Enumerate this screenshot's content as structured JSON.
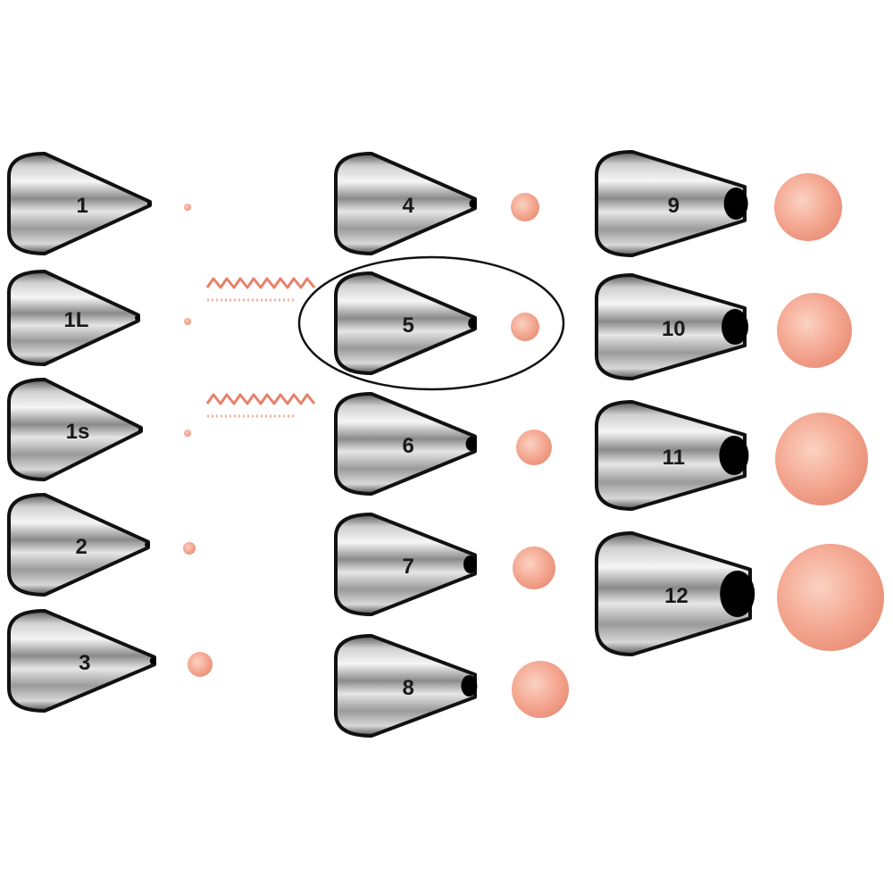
{
  "colors": {
    "dot": "#f2a28c",
    "dot_highlight": "#fbd2c2",
    "metal_dark": "#4a4a4a",
    "metal_light": "#f2f2f2",
    "outline": "#111111",
    "squiggle": "#e8806a"
  },
  "tips": [
    {
      "label": "1"
    },
    {
      "label": "1L"
    },
    {
      "label": "1s"
    },
    {
      "label": "2"
    },
    {
      "label": "3"
    },
    {
      "label": "4"
    },
    {
      "label": "5"
    },
    {
      "label": "6"
    },
    {
      "label": "7"
    },
    {
      "label": "8"
    },
    {
      "label": "9"
    },
    {
      "label": "10"
    },
    {
      "label": "11"
    },
    {
      "label": "12"
    }
  ],
  "highlighted_tip": "5"
}
